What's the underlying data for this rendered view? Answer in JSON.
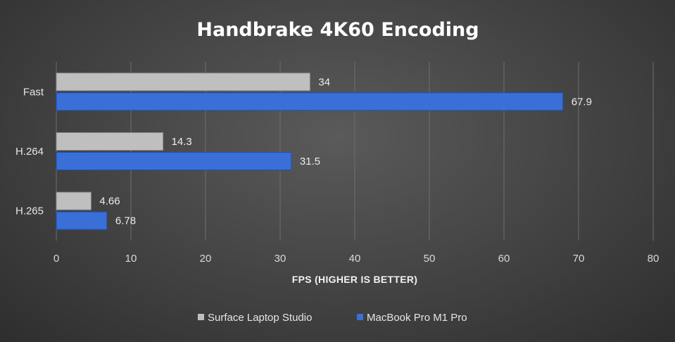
{
  "chart_data": {
    "type": "bar",
    "orientation": "horizontal",
    "title": "Handbrake 4K60 Encoding",
    "xlabel": "FPS (HIGHER IS BETTER)",
    "ylabel": "",
    "categories": [
      "Fast",
      "H.264",
      "H.265"
    ],
    "series": [
      {
        "name": "Surface Laptop Studio",
        "color": "#bfbfbf",
        "values": [
          34,
          14.3,
          4.66
        ],
        "labels": [
          "34",
          "14.3",
          "4.66"
        ]
      },
      {
        "name": "MacBook Pro M1 Pro",
        "color": "#3a6fd8",
        "values": [
          67.9,
          31.5,
          6.78
        ],
        "labels": [
          "67.9",
          "31.5",
          "6.78"
        ]
      }
    ],
    "xlim": [
      0,
      80
    ],
    "xticks": [
      "0",
      "10",
      "20",
      "30",
      "40",
      "50",
      "60",
      "70",
      "80"
    ],
    "grid": true,
    "legend_position": "bottom"
  }
}
